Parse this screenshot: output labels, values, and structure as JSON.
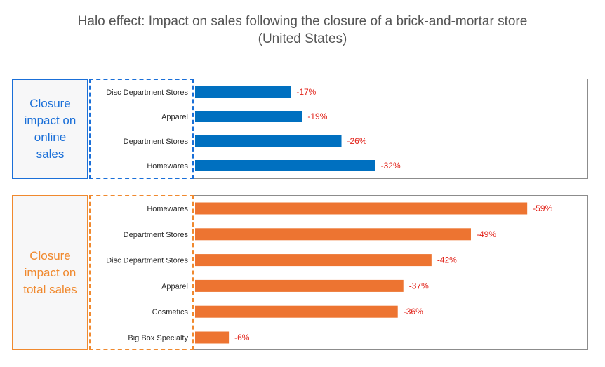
{
  "title_line1": "Halo effect: Impact on sales following the closure of a brick-and-mortar store",
  "title_line2": "(United States)",
  "colors": {
    "online": "#1a6fd8",
    "online_bar": "#0070c0",
    "total": "#f0892e",
    "total_bar": "#ed7431",
    "value_label": "#e2231a",
    "category_text": "#2b2b2b"
  },
  "online_panel": {
    "label": "Closure\nimpact on\nonline\nsales"
  },
  "total_panel": {
    "label": "Closure\nimpact on\ntotal sales"
  },
  "chart_data": [
    {
      "type": "bar",
      "orientation": "horizontal",
      "categories": [
        "Disc Department Stores",
        "Apparel",
        "Department Stores",
        "Homewares"
      ],
      "values": [
        -17,
        -19,
        -26,
        -32
      ],
      "value_labels": [
        "-17%",
        "-19%",
        "-26%",
        "-32%"
      ],
      "xlim": [
        0,
        -59
      ]
    },
    {
      "type": "bar",
      "orientation": "horizontal",
      "categories": [
        "Homewares",
        "Department Stores",
        "Disc Department Stores",
        "Apparel",
        "Cosmetics",
        "Big Box Specialty"
      ],
      "values": [
        -59,
        -49,
        -42,
        -37,
        -36,
        -6
      ],
      "value_labels": [
        "-59%",
        "-49%",
        "-42%",
        "-37%",
        "-36%",
        "-6%"
      ],
      "xlim": [
        0,
        -59
      ]
    }
  ]
}
